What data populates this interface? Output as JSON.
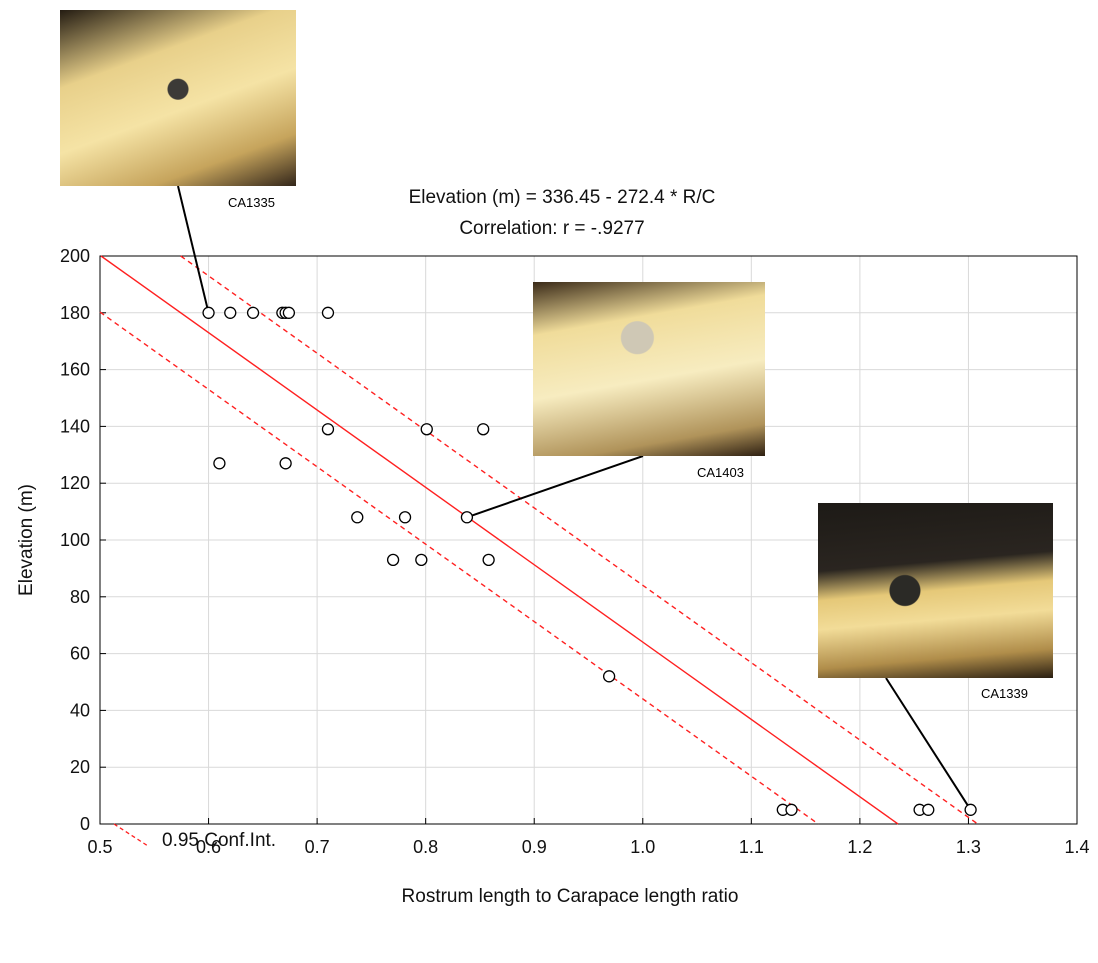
{
  "chart_data": {
    "type": "scatter",
    "title_line1": "Elevation (m) = 336.45 - 272.4  * R/C",
    "title_line2": "Correlation: r = -.9277",
    "xlabel": "Rostrum length to Carapace length ratio",
    "ylabel": "Elevation (m)",
    "xlim": [
      0.5,
      1.4
    ],
    "ylim": [
      0,
      200
    ],
    "xticks": [
      "0.5",
      "0.6",
      "0.7",
      "0.8",
      "0.9",
      "1.0",
      "1.1",
      "1.2",
      "1.3",
      "1.4"
    ],
    "yticks": [
      "0",
      "20",
      "40",
      "60",
      "80",
      "100",
      "120",
      "140",
      "160",
      "180",
      "200"
    ],
    "grid": true,
    "regression": {
      "intercept": 336.45,
      "slope": -272.4
    },
    "conf_band_offset": 20,
    "legend": {
      "label": "0.95 Conf.Int.",
      "placement": "bottom-left"
    },
    "colors": {
      "fit": "#ff2020",
      "points": "#000000",
      "grid": "#d9d9d9"
    },
    "points": [
      {
        "x": 0.6,
        "y": 180
      },
      {
        "x": 0.62,
        "y": 180
      },
      {
        "x": 0.641,
        "y": 180
      },
      {
        "x": 0.668,
        "y": 180
      },
      {
        "x": 0.671,
        "y": 180
      },
      {
        "x": 0.674,
        "y": 180
      },
      {
        "x": 0.71,
        "y": 180
      },
      {
        "x": 0.71,
        "y": 139
      },
      {
        "x": 0.801,
        "y": 139
      },
      {
        "x": 0.853,
        "y": 139
      },
      {
        "x": 0.61,
        "y": 127
      },
      {
        "x": 0.671,
        "y": 127
      },
      {
        "x": 0.737,
        "y": 108
      },
      {
        "x": 0.781,
        "y": 108
      },
      {
        "x": 0.838,
        "y": 108
      },
      {
        "x": 0.77,
        "y": 93
      },
      {
        "x": 0.796,
        "y": 93
      },
      {
        "x": 0.858,
        "y": 93
      },
      {
        "x": 0.969,
        "y": 52
      },
      {
        "x": 1.129,
        "y": 5
      },
      {
        "x": 1.137,
        "y": 5
      },
      {
        "x": 1.255,
        "y": 5
      },
      {
        "x": 1.263,
        "y": 5
      },
      {
        "x": 1.302,
        "y": 5
      }
    ],
    "annotations": [
      {
        "label": "CA1335",
        "point": {
          "x": 0.6,
          "y": 180
        }
      },
      {
        "label": "CA1403",
        "point": {
          "x": 0.838,
          "y": 108
        }
      },
      {
        "label": "CA1339",
        "point": {
          "x": 1.302,
          "y": 5
        }
      }
    ]
  }
}
